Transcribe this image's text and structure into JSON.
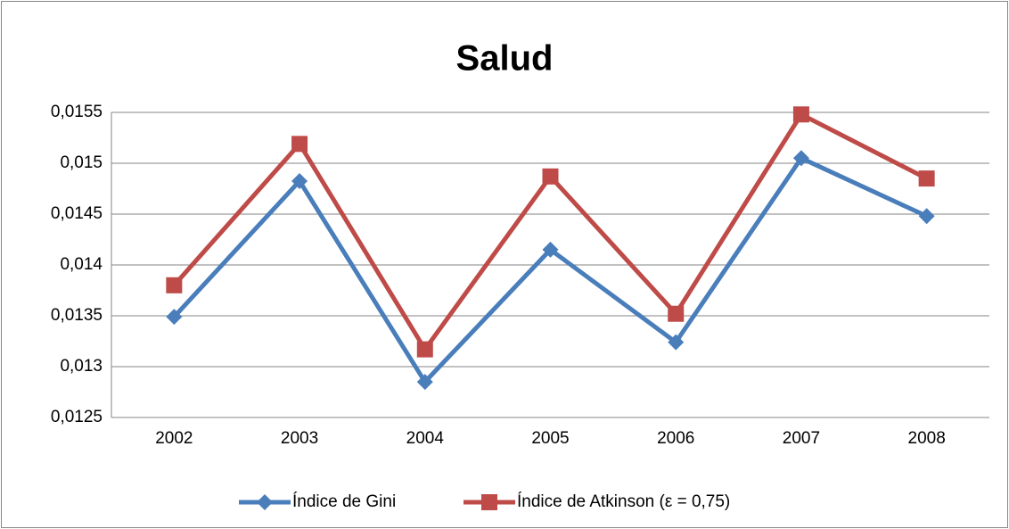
{
  "chart_data": {
    "type": "line",
    "title": "Salud",
    "categories": [
      "2002",
      "2003",
      "2004",
      "2005",
      "2006",
      "2007",
      "2008"
    ],
    "series": [
      {
        "name": "Índice de Gini",
        "color": "#4a7ebb",
        "marker": "diamond",
        "values": [
          0.01349,
          0.014825,
          0.01285,
          0.01415,
          0.01324,
          0.01505,
          0.01448
        ]
      },
      {
        "name": "Índice de Atkinson (ε = 0,75)",
        "color": "#be4b48",
        "marker": "square",
        "values": [
          0.0138,
          0.01519,
          0.01317,
          0.01487,
          0.01352,
          0.01548,
          0.01485
        ]
      }
    ],
    "ylim": [
      0.0125,
      0.0155
    ],
    "yticks": [
      {
        "value": 0.0125,
        "label": "0,0125"
      },
      {
        "value": 0.013,
        "label": "0,013"
      },
      {
        "value": 0.0135,
        "label": "0,0135"
      },
      {
        "value": 0.014,
        "label": "0,014"
      },
      {
        "value": 0.0145,
        "label": "0,0145"
      },
      {
        "value": 0.015,
        "label": "0,015"
      },
      {
        "value": 0.0155,
        "label": "0,0155"
      }
    ],
    "grid": true,
    "legend": "bottom"
  }
}
